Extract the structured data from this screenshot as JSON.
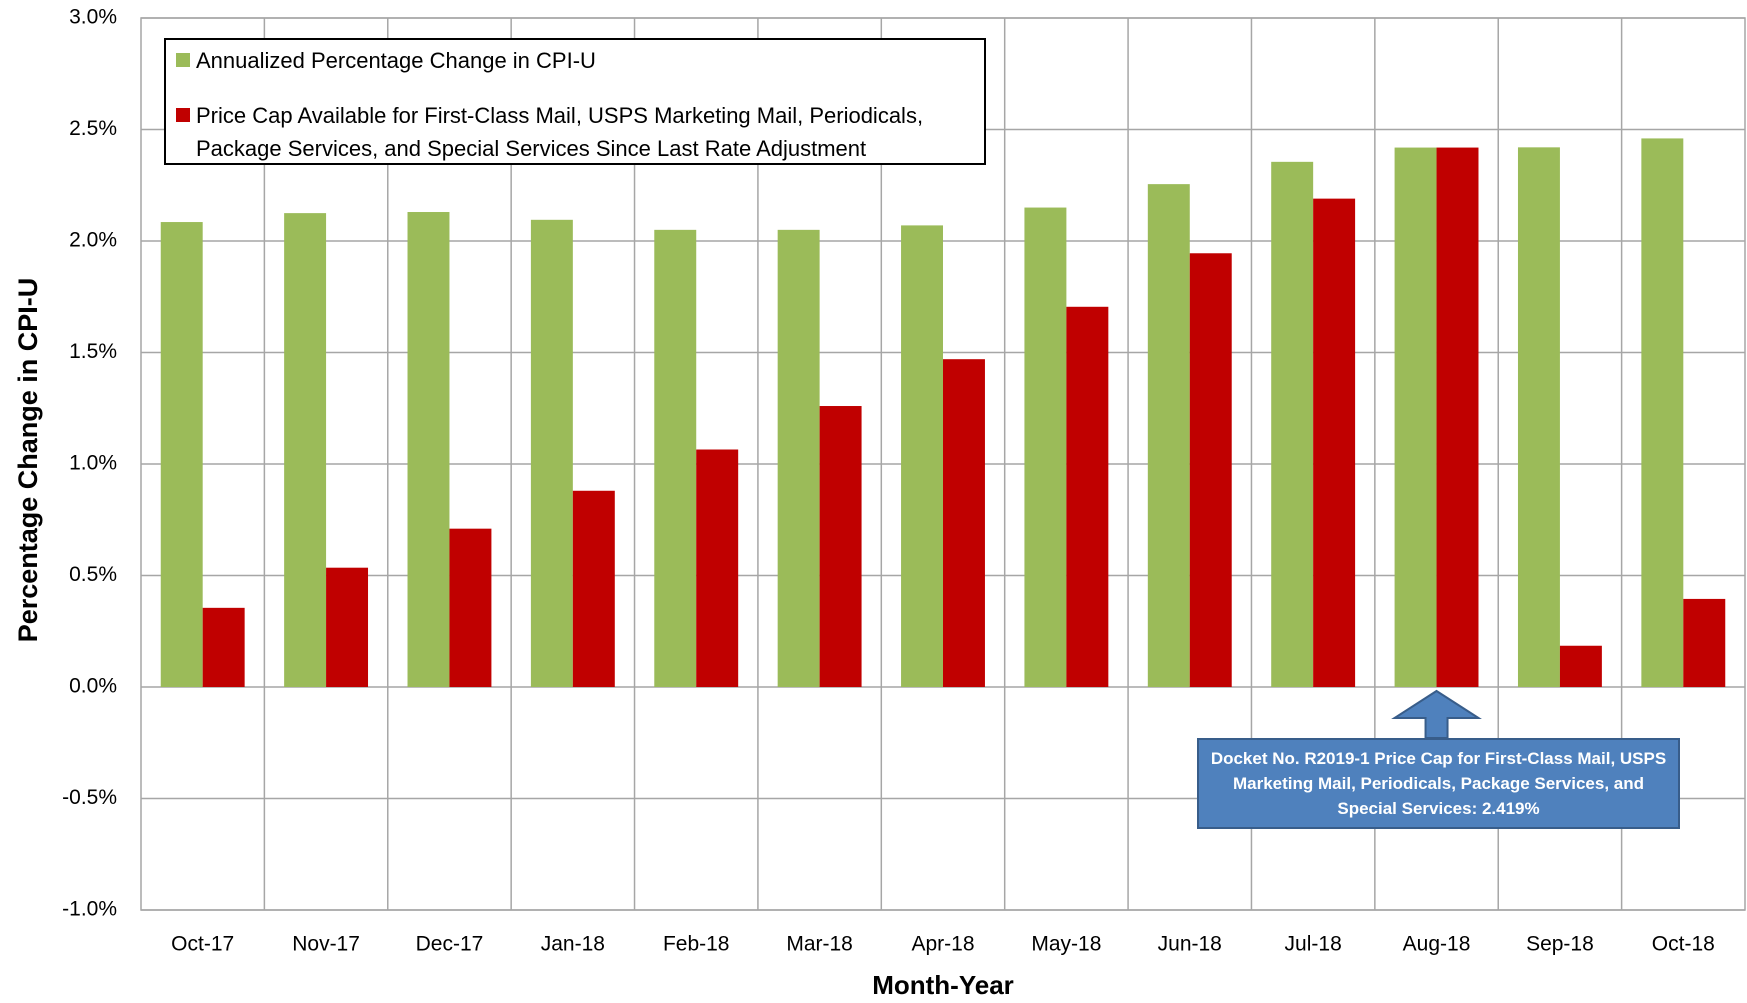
{
  "chart_data": {
    "type": "bar",
    "y_label": "Percentage Change in CPI-U",
    "x_label": "Month-Year",
    "categories": [
      "Oct-17",
      "Nov-17",
      "Dec-17",
      "Jan-18",
      "Feb-18",
      "Mar-18",
      "Apr-18",
      "May-18",
      "Jun-18",
      "Jul-18",
      "Aug-18",
      "Sep-18",
      "Oct-18"
    ],
    "series": [
      {
        "name": "Annualized Percentage Change in CPI-U",
        "color": "#9bbb59",
        "values": [
          2.085,
          2.125,
          2.13,
          2.095,
          2.05,
          2.05,
          2.07,
          2.15,
          2.255,
          2.355,
          2.419,
          2.42,
          2.46
        ]
      },
      {
        "name": "Price Cap Available for First-Class Mail, USPS Marketing Mail, Periodicals, Package Services, and Special Services Since Last Rate Adjustment",
        "color": "#c00000",
        "values": [
          0.355,
          0.535,
          0.71,
          0.88,
          1.065,
          1.26,
          1.47,
          1.705,
          1.945,
          2.19,
          2.419,
          0.185,
          0.395
        ]
      }
    ],
    "annotation": "Docket No. R2019-1 Price Cap for First-Class Mail, USPS Marketing Mail, Periodicals, Package Services, and Special Services: 2.419%",
    "ylim": [
      -1.0,
      3.0
    ],
    "yticks": [
      {
        "value": -1.0,
        "label": "-1.0%"
      },
      {
        "value": -0.5,
        "label": "-0.5%"
      },
      {
        "value": 0.0,
        "label": "0.0%"
      },
      {
        "value": 0.5,
        "label": "0.5%"
      },
      {
        "value": 1.0,
        "label": "1.0%"
      },
      {
        "value": 1.5,
        "label": "1.5%"
      },
      {
        "value": 2.0,
        "label": "2.0%"
      },
      {
        "value": 2.5,
        "label": "2.5%"
      },
      {
        "value": 3.0,
        "label": "3.0%"
      }
    ],
    "grid": true
  }
}
